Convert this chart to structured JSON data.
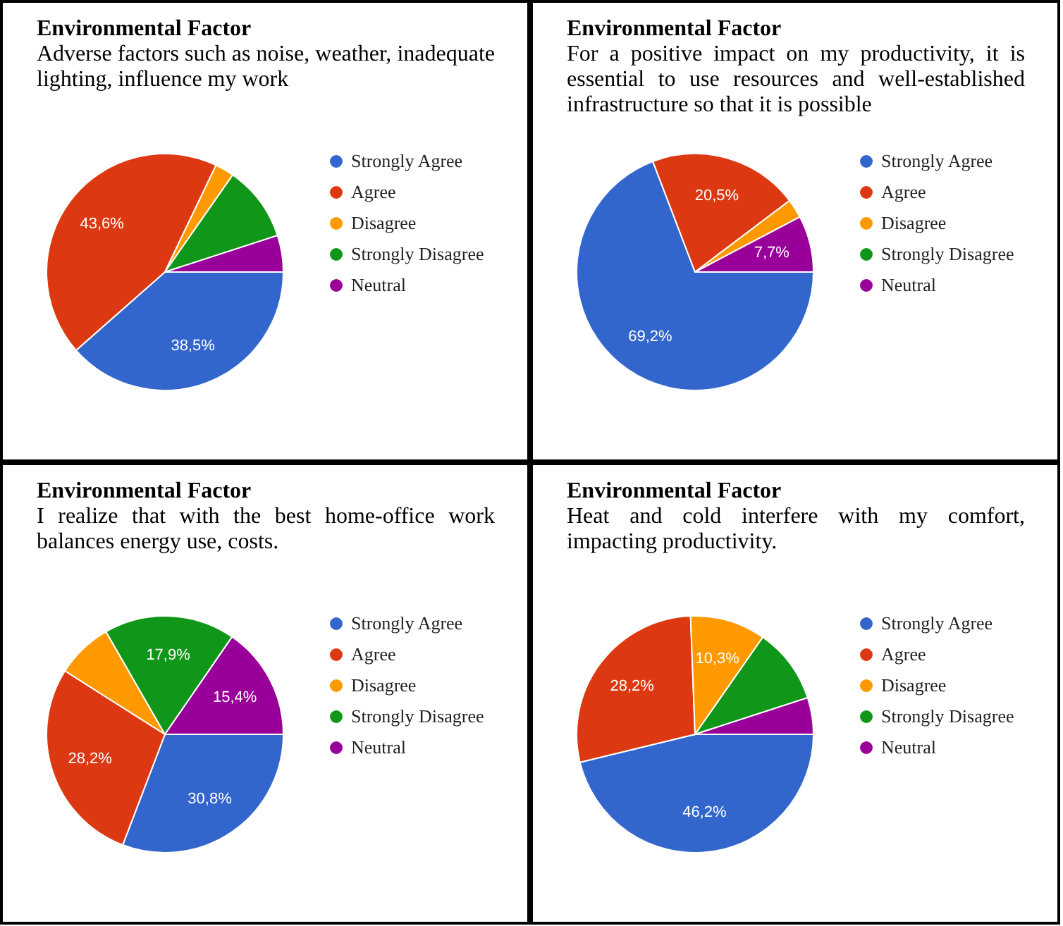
{
  "chart_data": [
    {
      "type": "pie",
      "title": "Environmental Factor",
      "subtitle": "Adverse factors such as noise, weather, inadequate lighting, influence my work",
      "categories": [
        "Strongly Agree",
        "Agree",
        "Disagree",
        "Strongly Disagree",
        "Neutral"
      ],
      "values": [
        38.5,
        43.6,
        2.6,
        10.3,
        5.0
      ],
      "colors": [
        "#3366cc",
        "#dc3912",
        "#ff9900",
        "#109618",
        "#990099"
      ],
      "value_labels": [
        "38,5%",
        "43,6%",
        null,
        null,
        null
      ],
      "legend": "right"
    },
    {
      "type": "pie",
      "title": "Environmental Factor",
      "subtitle": "For a positive impact on my productivity, it is essential to use resources and well-established infrastructure so that it is possible",
      "categories": [
        "Strongly Agree",
        "Agree",
        "Disagree",
        "Strongly Disagree",
        "Neutral"
      ],
      "values": [
        69.2,
        20.5,
        2.6,
        null,
        7.7
      ],
      "colors": [
        "#3366cc",
        "#dc3912",
        "#ff9900",
        "#109618",
        "#990099"
      ],
      "value_labels": [
        "69,2%",
        "20,5%",
        null,
        null,
        "7,7%"
      ],
      "legend": "right"
    },
    {
      "type": "pie",
      "title": "Environmental Factor",
      "subtitle": "I realize that with the best home-office work balances energy use, costs.",
      "categories": [
        "Strongly Agree",
        "Agree",
        "Disagree",
        "Strongly Disagree",
        "Neutral"
      ],
      "values": [
        30.8,
        28.2,
        7.7,
        17.9,
        15.4
      ],
      "colors": [
        "#3366cc",
        "#dc3912",
        "#ff9900",
        "#109618",
        "#990099"
      ],
      "value_labels": [
        "30,8%",
        "28,2%",
        null,
        "17,9%",
        "15,4%"
      ],
      "legend": "right"
    },
    {
      "type": "pie",
      "title": "Environmental Factor",
      "subtitle": "Heat and cold interfere with my comfort, impacting productivity.",
      "categories": [
        "Strongly Agree",
        "Agree",
        "Disagree",
        "Strongly Disagree",
        "Neutral"
      ],
      "values": [
        46.2,
        28.2,
        10.3,
        10.3,
        5.0
      ],
      "colors": [
        "#3366cc",
        "#dc3912",
        "#ff9900",
        "#109618",
        "#990099"
      ],
      "value_labels": [
        "46,2%",
        "28,2%",
        "10,3%",
        null,
        null
      ],
      "legend": "right"
    }
  ]
}
